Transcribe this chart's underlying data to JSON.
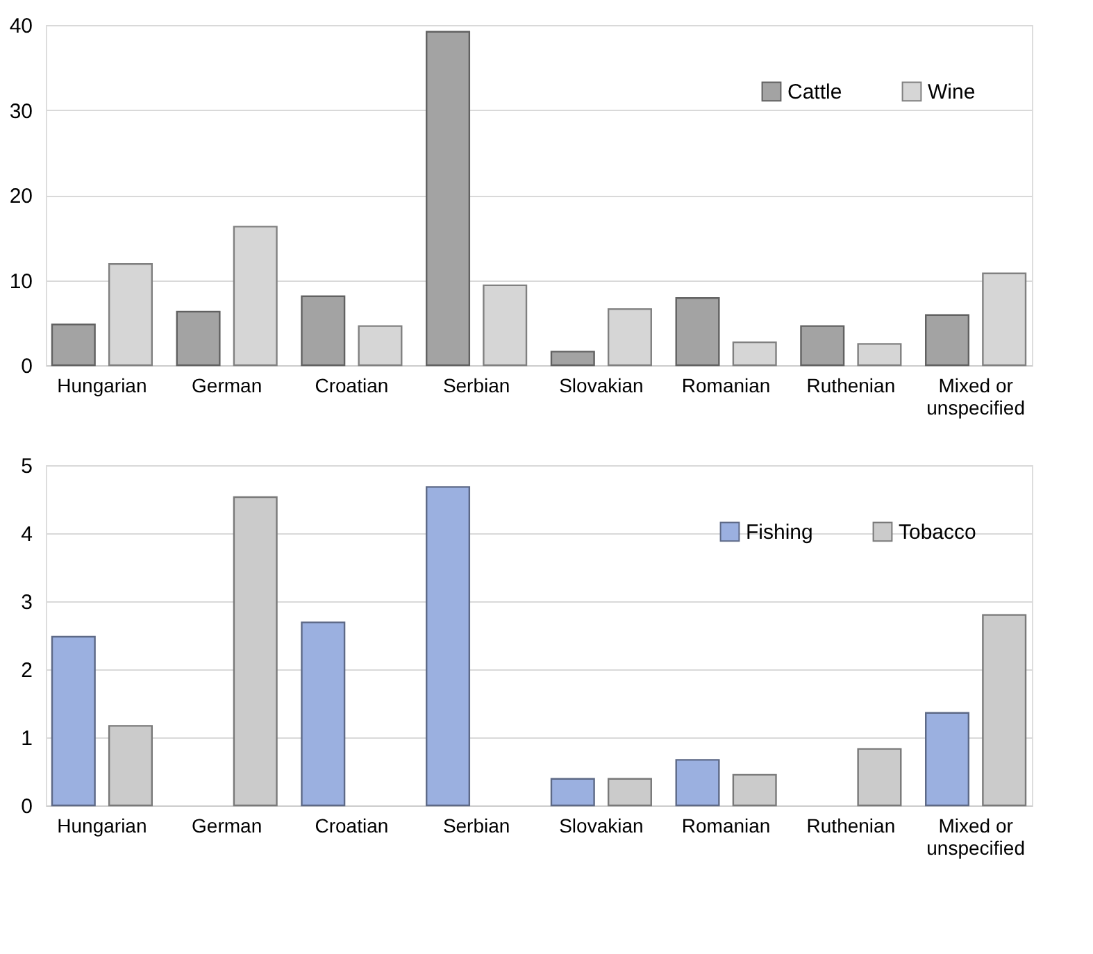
{
  "chart_data": [
    {
      "type": "bar",
      "categories": [
        "Hungarian",
        "German",
        "Croatian",
        "Serbian",
        "Slovakian",
        "Romanian",
        "Ruthenian",
        "Mixed or unspecified"
      ],
      "series": [
        {
          "name": "Cattle",
          "color": "#a3a3a3",
          "values": [
            4.8,
            6.3,
            8.1,
            39.2,
            1.6,
            7.9,
            4.6,
            5.9
          ]
        },
        {
          "name": "Wine",
          "color": "#d6d6d6",
          "values": [
            11.9,
            16.3,
            4.6,
            9.4,
            6.6,
            2.7,
            2.5,
            10.8
          ]
        }
      ],
      "ylim": [
        0,
        40
      ],
      "yticks": [
        0,
        10,
        20,
        30,
        40
      ],
      "grid": "y",
      "legend": "top right"
    },
    {
      "type": "bar",
      "categories": [
        "Hungarian",
        "German",
        "Croatian",
        "Serbian",
        "Slovakian",
        "Romanian",
        "Ruthenian",
        "Mixed or unspecified"
      ],
      "series": [
        {
          "name": "Fishing",
          "color": "#9bb0e0",
          "values": [
            2.48,
            null,
            2.69,
            4.68,
            0.39,
            0.67,
            null,
            1.36
          ]
        },
        {
          "name": "Tobacco",
          "color": "#cbcbcb",
          "values": [
            1.17,
            4.53,
            null,
            null,
            0.39,
            0.45,
            0.83,
            2.8
          ]
        }
      ],
      "ylim": [
        0,
        5
      ],
      "yticks": [
        0,
        1,
        2,
        3,
        4,
        5
      ],
      "grid": "y",
      "legend": "top right"
    }
  ]
}
